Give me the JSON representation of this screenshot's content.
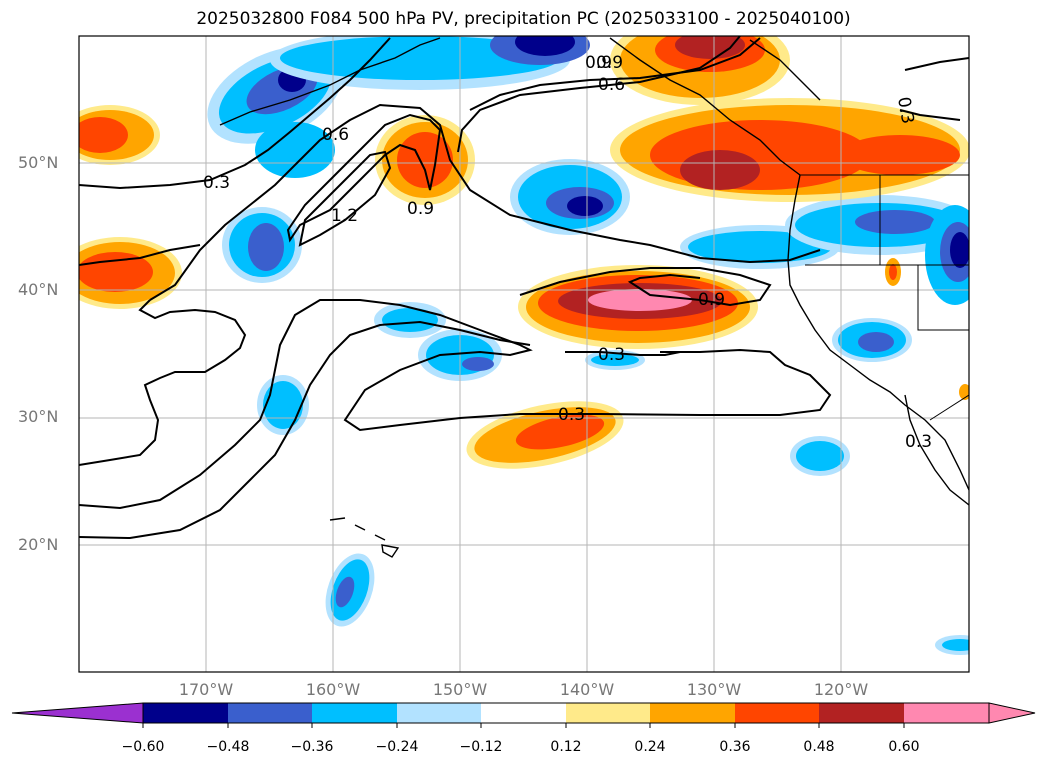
{
  "title": "2025032800 F084 500 hPa PV, precipitation PC (2025033100 - 2025040100)",
  "lat_labels": [
    "50°N",
    "40°N",
    "30°N",
    "20°N"
  ],
  "lon_labels": [
    "170°W",
    "160°W",
    "150°W",
    "140°W",
    "130°W",
    "120°W"
  ],
  "contour_labels": [
    "0.3",
    "0.6",
    "0.9",
    "1.2",
    "0.9",
    "0.6",
    "0.9",
    "0.9",
    "0.3",
    "0.3",
    "0.3",
    "0.3"
  ],
  "colorbar": {
    "ticks": [
      "−0.60",
      "−0.48",
      "−0.36",
      "−0.24",
      "−0.12",
      "0.12",
      "0.24",
      "0.36",
      "0.48",
      "0.60"
    ],
    "colors": [
      "#9b30d0",
      "#00008b",
      "#3a5fcd",
      "#00bfff",
      "#b2e2ff",
      "#ffffff",
      "#ffea8a",
      "#ffa500",
      "#ff4500",
      "#b22222",
      "#ff88b0",
      "#ff88b0"
    ]
  },
  "colors": {
    "dark_blue": "#00008b",
    "mid_blue": "#3a5fcd",
    "light_blue": "#00bfff",
    "pale_blue": "#b2e2ff",
    "pale_yellow": "#ffea8a",
    "orange": "#ffa500",
    "red_orange": "#ff4500",
    "dark_red": "#b22222",
    "pink": "#ff88b0"
  }
}
